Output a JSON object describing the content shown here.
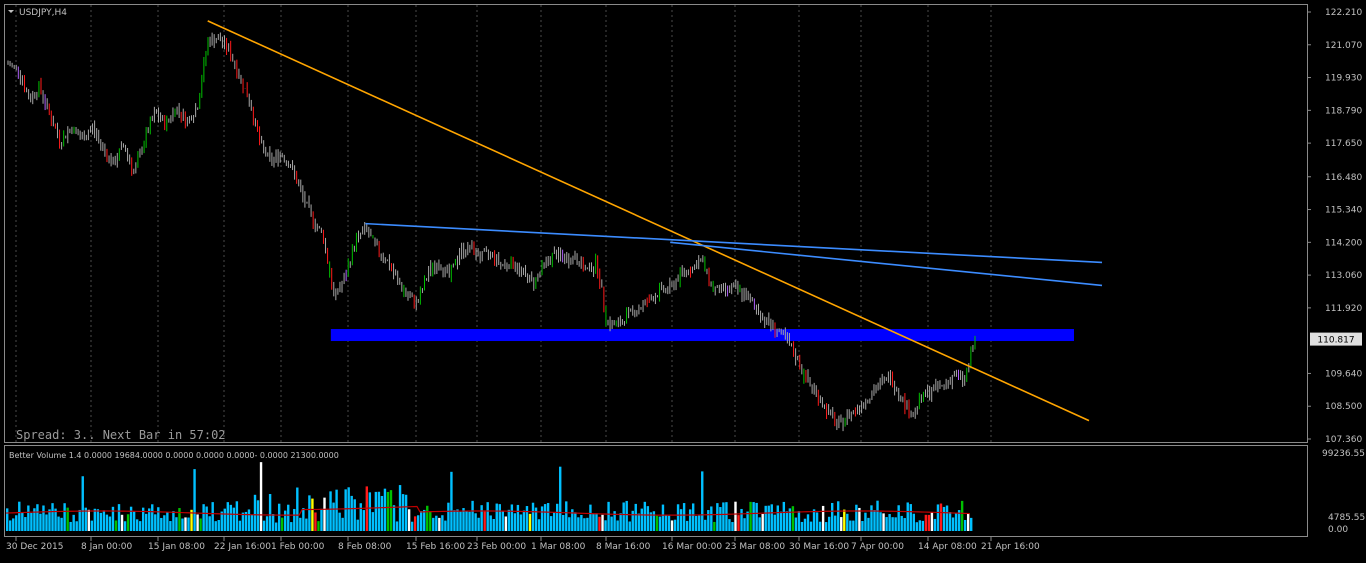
{
  "symbol_title": "USDJPY,H4",
  "status_text": "Spread: 3.. Next Bar in 57:02",
  "indicator_title": "Better Volume 1.4 0.0000 19684.0000 0.0000 0.0000 0.0000- 0.0000 21300.0000",
  "price_axis": [
    "122.210",
    "121.070",
    "119.930",
    "118.790",
    "117.650",
    "116.480",
    "115.340",
    "114.200",
    "113.060",
    "111.920",
    "109.640",
    "108.500",
    "107.360"
  ],
  "current_price": "110.817",
  "volume_axis": {
    "top": "99236.55",
    "mid": "4785.55",
    "bottom": "0.00"
  },
  "time_axis": [
    "30 Dec 2015",
    "8 Jan 00:00",
    "15 Jan 08:00",
    "22 Jan 16:00",
    "1 Feb 00:00",
    "8 Feb 08:00",
    "15 Feb 16:00",
    "23 Feb 00:00",
    "1 Mar 08:00",
    "8 Mar 16:00",
    "16 Mar 00:00",
    "23 Mar 08:00",
    "30 Mar 16:00",
    "7 Apr 00:00",
    "14 Apr 08:00",
    "21 Apr 16:00"
  ],
  "colors": {
    "background": "#000000",
    "axis_text": "#c0c0c0",
    "grid": "#4a4a4a",
    "candle": "#a8a8a8",
    "bull_highlight": "#00c000",
    "bear_highlight": "#ff1a1a",
    "climax": "#b060ff",
    "trendline_orange": "#ffa500",
    "trendline_blue": "#3c8cff",
    "support_zone": "#0000ff",
    "volume_bar": "#00c0ff",
    "volume_ma": "#c00000"
  },
  "chart_data": {
    "type": "candlestick",
    "symbol": "USDJPY",
    "timeframe": "H4",
    "ylim": [
      107.36,
      122.21
    ],
    "path": [
      [
        "30 Dec 2015",
        120.4
      ],
      [
        "2 Jan",
        120.2
      ],
      [
        "4 Jan",
        119.2
      ],
      [
        "5 Jan",
        119.6
      ],
      [
        "6 Jan",
        118.6
      ],
      [
        "8 Jan",
        117.7
      ],
      [
        "10 Jan",
        118.2
      ],
      [
        "12 Jan",
        117.8
      ],
      [
        "14 Jan",
        118.2
      ],
      [
        "15 Jan",
        117.5
      ],
      [
        "17 Jan",
        116.9
      ],
      [
        "19 Jan",
        117.6
      ],
      [
        "20 Jan",
        116.6
      ],
      [
        "21 Jan",
        117.8
      ],
      [
        "22 Jan",
        118.7
      ],
      [
        "24 Jan",
        118.3
      ],
      [
        "25 Jan",
        118.9
      ],
      [
        "27 Jan",
        118.4
      ],
      [
        "28 Jan",
        118.9
      ],
      [
        "29 Jan",
        121.2
      ],
      [
        "30 Jan",
        121.3
      ],
      [
        "1 Feb",
        120.9
      ],
      [
        "2 Feb",
        120.0
      ],
      [
        "3 Feb",
        119.1
      ],
      [
        "4 Feb",
        117.6
      ],
      [
        "5 Feb",
        117.0
      ],
      [
        "6 Feb",
        117.3
      ],
      [
        "7 Feb",
        116.8
      ],
      [
        "8 Feb",
        115.8
      ],
      [
        "9 Feb",
        115.0
      ],
      [
        "10 Feb",
        114.4
      ],
      [
        "11 Feb",
        112.3
      ],
      [
        "12 Feb",
        112.9
      ],
      [
        "14 Feb",
        114.2
      ],
      [
        "15 Feb",
        114.7
      ],
      [
        "17 Feb",
        114.0
      ],
      [
        "19 Feb",
        113.6
      ],
      [
        "20 Feb",
        112.9
      ],
      [
        "22 Feb",
        112.3
      ],
      [
        "23 Feb",
        112.1
      ],
      [
        "24 Feb",
        113.2
      ],
      [
        "25 Feb",
        113.5
      ],
      [
        "26 Feb",
        113.0
      ],
      [
        "28 Feb",
        113.9
      ],
      [
        "1 Mar",
        114.0
      ],
      [
        "2 Mar",
        113.7
      ],
      [
        "3 Mar",
        113.8
      ],
      [
        "4 Mar",
        113.4
      ],
      [
        "6 Mar",
        113.5
      ],
      [
        "7 Mar",
        113.1
      ],
      [
        "8 Mar",
        112.8
      ],
      [
        "9 Mar",
        113.4
      ],
      [
        "10 Mar",
        113.8
      ],
      [
        "11 Mar",
        113.6
      ],
      [
        "13 Mar",
        113.7
      ],
      [
        "14 Mar",
        113.2
      ],
      [
        "15 Mar",
        113.5
      ],
      [
        "16 Mar",
        111.4
      ],
      [
        "17 Mar",
        111.3
      ],
      [
        "19 Mar",
        111.7
      ],
      [
        "20 Mar",
        111.9
      ],
      [
        "21 Mar",
        112.2
      ],
      [
        "22 Mar",
        112.5
      ],
      [
        "23 Mar",
        112.6
      ],
      [
        "24 Mar",
        113.1
      ],
      [
        "25 Mar",
        113.3
      ],
      [
        "26 Mar",
        113.6
      ],
      [
        "27 Mar",
        112.6
      ],
      [
        "28 Mar",
        112.5
      ],
      [
        "30 Mar",
        112.6
      ],
      [
        "31 Mar",
        112.4
      ],
      [
        "1 Apr",
        112.0
      ],
      [
        "2 Apr",
        111.5
      ],
      [
        "3 Apr",
        111.2
      ],
      [
        "4 Apr",
        110.8
      ],
      [
        "5 Apr",
        110.2
      ],
      [
        "6 Apr",
        109.4
      ],
      [
        "7 Apr",
        108.9
      ],
      [
        "8 Apr",
        108.3
      ],
      [
        "9 Apr",
        107.8
      ],
      [
        "10 Apr",
        108.2
      ],
      [
        "11 Apr",
        108.5
      ],
      [
        "12 Apr",
        108.9
      ],
      [
        "13 Apr",
        109.3
      ],
      [
        "14 Apr",
        109.5
      ],
      [
        "15 Apr",
        108.8
      ],
      [
        "16 Apr",
        108.2
      ],
      [
        "17 Apr",
        108.8
      ],
      [
        "18 Apr",
        109.1
      ],
      [
        "19 Apr",
        109.2
      ],
      [
        "20 Apr",
        109.6
      ],
      [
        "21 Apr",
        109.4
      ],
      [
        "21 Apr 16:00",
        110.8
      ]
    ],
    "trendlines": [
      {
        "color": "orange",
        "from": [
          "29 Jan",
          121.9
        ],
        "to": [
          "21 Apr 16:00",
          108.0
        ]
      },
      {
        "color": "blue",
        "from": [
          "15 Feb",
          114.85
        ],
        "to": [
          "21 Apr 16:00",
          113.5
        ]
      },
      {
        "color": "blue",
        "from": [
          "23 Mar",
          114.2
        ],
        "to": [
          "21 Apr 16:00",
          112.7
        ]
      }
    ],
    "support_zone": {
      "color": "blue",
      "price": [
        110.85,
        111.15
      ],
      "from": "11 Feb",
      "to": "21 Apr 16:00"
    },
    "current_price": 110.817,
    "volume_ylim": [
      0,
      99236.55
    ]
  }
}
